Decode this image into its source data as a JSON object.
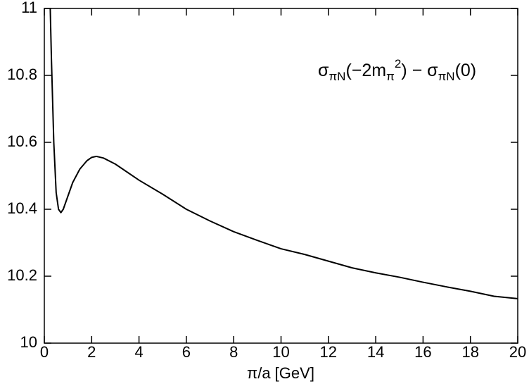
{
  "chart_data": {
    "type": "line",
    "x_label": "π/a [GeV]",
    "annotation": [
      {
        "text": "σ",
        "pos": "base"
      },
      {
        "text": "πN",
        "pos": "sub"
      },
      {
        "text": "(−2m",
        "pos": "base"
      },
      {
        "text": "π",
        "pos": "sub"
      },
      {
        "text": "2",
        "pos": "sup"
      },
      {
        "text": ") − σ",
        "pos": "base"
      },
      {
        "text": "πN",
        "pos": "sub"
      },
      {
        "text": "(0)",
        "pos": "base"
      }
    ],
    "x": [
      0.25,
      0.3,
      0.4,
      0.5,
      0.6,
      0.7,
      0.8,
      1.0,
      1.2,
      1.5,
      1.8,
      2.0,
      2.2,
      2.5,
      3.0,
      4.0,
      5.0,
      6.0,
      7.0,
      8.0,
      9.0,
      10.0,
      11.0,
      12.0,
      13.0,
      14.0,
      15.0,
      16.0,
      17.0,
      18.0,
      19.0,
      20.0
    ],
    "series": [
      {
        "color": "#000000",
        "values": [
          11.0,
          10.85,
          10.6,
          10.45,
          10.4,
          10.39,
          10.4,
          10.44,
          10.48,
          10.52,
          10.545,
          10.555,
          10.558,
          10.553,
          10.535,
          10.487,
          10.445,
          10.4,
          10.365,
          10.333,
          10.307,
          10.282,
          10.265,
          10.245,
          10.225,
          10.21,
          10.197,
          10.182,
          10.168,
          10.155,
          10.14,
          10.133
        ]
      }
    ],
    "xlim": [
      0,
      20
    ],
    "xticks": [
      0,
      2,
      4,
      6,
      8,
      10,
      12,
      14,
      16,
      18,
      20
    ],
    "ylim": [
      10,
      11
    ],
    "yticks": [
      10,
      10.2,
      10.4,
      10.6,
      10.8,
      11
    ]
  }
}
